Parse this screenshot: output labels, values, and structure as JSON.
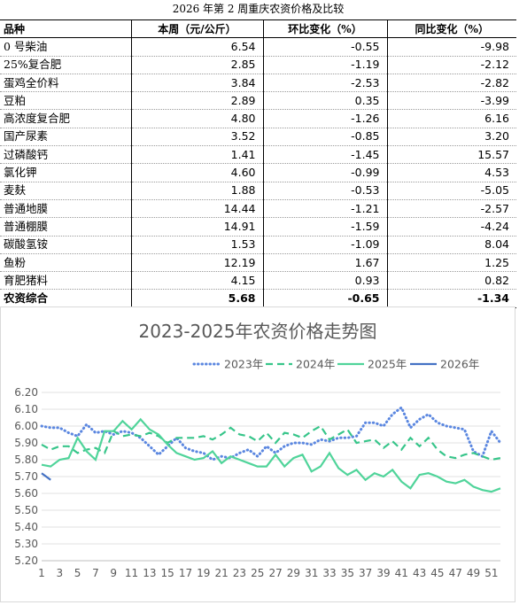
{
  "table": {
    "title": "2026 年第 2 周重庆农资价格及比较",
    "headers": [
      "品种",
      "本周（元/公斤）",
      "环比变化（%）",
      "同比变化（%）"
    ],
    "rows": [
      {
        "name": "0 号柴油",
        "price": "6.54",
        "mom": "-0.55",
        "yoy": "-9.98"
      },
      {
        "name": "25%复合肥",
        "price": "2.85",
        "mom": "-1.19",
        "yoy": "-2.12"
      },
      {
        "name": "蛋鸡全价料",
        "price": "3.84",
        "mom": "-2.53",
        "yoy": "-2.82"
      },
      {
        "name": "豆粕",
        "price": "2.89",
        "mom": "0.35",
        "yoy": "-3.99"
      },
      {
        "name": "高浓度复合肥",
        "price": "4.80",
        "mom": "-1.26",
        "yoy": "6.16"
      },
      {
        "name": "国产尿素",
        "price": "3.52",
        "mom": "-0.85",
        "yoy": "3.20"
      },
      {
        "name": "过磷酸钙",
        "price": "1.41",
        "mom": "-1.45",
        "yoy": "15.57"
      },
      {
        "name": "氯化钾",
        "price": "4.60",
        "mom": "-0.99",
        "yoy": "4.53"
      },
      {
        "name": "麦麸",
        "price": "1.88",
        "mom": "-0.53",
        "yoy": "-5.05"
      },
      {
        "name": "普通地膜",
        "price": "14.44",
        "mom": "-1.21",
        "yoy": "-2.57"
      },
      {
        "name": "普通棚膜",
        "price": "14.91",
        "mom": "-1.59",
        "yoy": "-4.24"
      },
      {
        "name": "碳酸氢铵",
        "price": "1.53",
        "mom": "-1.09",
        "yoy": "8.04"
      },
      {
        "name": "鱼粉",
        "price": "12.19",
        "mom": "1.67",
        "yoy": "1.25"
      },
      {
        "name": "育肥猪料",
        "price": "4.15",
        "mom": "0.93",
        "yoy": "0.82"
      }
    ],
    "total": {
      "name": "农资综合",
      "price": "5.68",
      "mom": "-0.65",
      "yoy": "-1.34"
    }
  },
  "chart_data": {
    "type": "line",
    "title": "2023-2025年农资价格走势图",
    "xlabel": "",
    "ylabel": "",
    "ylim": [
      5.2,
      6.2
    ],
    "ytick_step": 0.1,
    "y_tick_labels": [
      "5.20",
      "5.30",
      "5.40",
      "5.50",
      "5.60",
      "5.70",
      "5.80",
      "5.90",
      "6.00",
      "6.10",
      "6.20"
    ],
    "xlim": [
      1,
      52
    ],
    "x_tick_labels": [
      "1",
      "3",
      "5",
      "7",
      "9",
      "11",
      "13",
      "15",
      "17",
      "19",
      "21",
      "23",
      "25",
      "27",
      "29",
      "31",
      "33",
      "35",
      "37",
      "39",
      "41",
      "43",
      "45",
      "47",
      "49",
      "51"
    ],
    "grid": true,
    "legend_position": "top",
    "series": [
      {
        "name": "2023年",
        "color": "#5B87E0",
        "dash": "dotted",
        "values": [
          6.0,
          5.99,
          5.99,
          5.96,
          5.94,
          6.01,
          5.96,
          5.97,
          5.95,
          5.97,
          5.96,
          5.93,
          5.88,
          5.83,
          5.88,
          5.93,
          5.87,
          5.85,
          5.84,
          5.8,
          5.82,
          5.81,
          5.84,
          5.86,
          5.82,
          5.88,
          5.84,
          5.88,
          5.9,
          5.9,
          5.89,
          5.92,
          5.91,
          5.93,
          5.93,
          5.94,
          6.02,
          6.02,
          6.0,
          6.07,
          6.11,
          5.99,
          6.04,
          6.07,
          6.02,
          6.0,
          5.99,
          5.98,
          5.85,
          5.82,
          5.97,
          5.9
        ]
      },
      {
        "name": "2024年",
        "color": "#37C58A",
        "dash": "dashed",
        "values": [
          5.89,
          5.86,
          5.88,
          5.88,
          5.84,
          5.86,
          5.87,
          5.84,
          5.97,
          5.94,
          5.95,
          5.94,
          5.96,
          5.94,
          5.9,
          5.93,
          5.93,
          5.93,
          5.94,
          5.92,
          5.95,
          5.99,
          5.95,
          5.94,
          5.91,
          5.96,
          5.9,
          5.96,
          5.95,
          5.93,
          5.97,
          6.0,
          5.92,
          5.95,
          5.98,
          5.9,
          5.91,
          5.92,
          5.87,
          5.91,
          5.86,
          5.93,
          5.88,
          5.93,
          5.86,
          5.82,
          5.81,
          5.83,
          5.84,
          5.82,
          5.8,
          5.81
        ]
      },
      {
        "name": "2025年",
        "color": "#50D49A",
        "dash": "solid",
        "values": [
          5.77,
          5.76,
          5.8,
          5.81,
          5.93,
          5.85,
          5.8,
          5.97,
          5.97,
          6.03,
          5.98,
          6.04,
          5.98,
          5.95,
          5.89,
          5.84,
          5.82,
          5.8,
          5.81,
          5.85,
          5.78,
          5.82,
          5.8,
          5.78,
          5.76,
          5.76,
          5.83,
          5.76,
          5.81,
          5.83,
          5.73,
          5.76,
          5.84,
          5.75,
          5.71,
          5.74,
          5.68,
          5.72,
          5.7,
          5.74,
          5.67,
          5.63,
          5.71,
          5.72,
          5.7,
          5.67,
          5.66,
          5.68,
          5.64,
          5.62,
          5.61,
          5.63
        ]
      },
      {
        "name": "2026年",
        "color": "#4472C4",
        "dash": "solid",
        "values": [
          5.72,
          5.68
        ]
      }
    ]
  }
}
